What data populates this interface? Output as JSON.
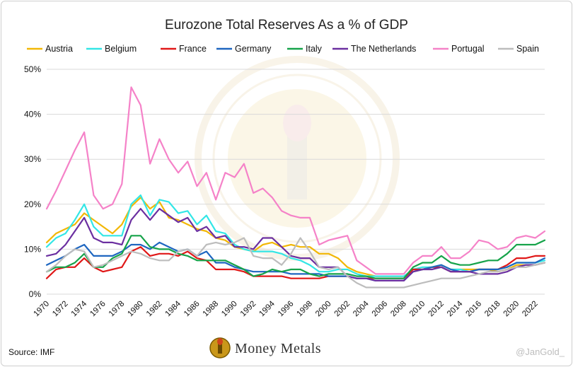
{
  "chart_data": {
    "type": "line",
    "title": "Eurozone Total Reserves As a % of GDP",
    "xlabel": "",
    "ylabel": "",
    "ylim": [
      0,
      50
    ],
    "yticks": [
      "0%",
      "10%",
      "20%",
      "30%",
      "40%",
      "50%"
    ],
    "xticks": [
      "1970",
      "1972",
      "1974",
      "1976",
      "1978",
      "1980",
      "1982",
      "1984",
      "1986",
      "1988",
      "1990",
      "1992",
      "1994",
      "1996",
      "1998",
      "2000",
      "2002",
      "2004",
      "2006",
      "2008",
      "2010",
      "2012",
      "2014",
      "2016",
      "2018",
      "2020",
      "2022"
    ],
    "x": [
      1970,
      1971,
      1972,
      1973,
      1974,
      1975,
      1976,
      1977,
      1978,
      1979,
      1980,
      1981,
      1982,
      1983,
      1984,
      1985,
      1986,
      1987,
      1988,
      1989,
      1990,
      1991,
      1992,
      1993,
      1994,
      1995,
      1996,
      1997,
      1998,
      1999,
      2000,
      2001,
      2002,
      2003,
      2004,
      2005,
      2006,
      2007,
      2008,
      2009,
      2010,
      2011,
      2012,
      2013,
      2014,
      2015,
      2016,
      2017,
      2018,
      2019,
      2020,
      2021,
      2022,
      2023
    ],
    "grid": true,
    "legend_position": "top",
    "series": [
      {
        "name": "Austria",
        "color": "#F2B705",
        "values": [
          11.5,
          13.5,
          14.5,
          15.5,
          18.0,
          16.5,
          15.0,
          13.5,
          15.5,
          19.5,
          21.5,
          19.0,
          20.5,
          17.0,
          16.5,
          15.5,
          14.5,
          14.0,
          12.5,
          12.0,
          10.5,
          10.0,
          9.5,
          11.0,
          11.5,
          10.5,
          11.0,
          10.5,
          10.5,
          9.0,
          9.0,
          8.0,
          6.0,
          5.0,
          4.5,
          4.0,
          4.0,
          4.0,
          4.0,
          5.0,
          5.5,
          6.0,
          6.5,
          5.5,
          5.5,
          5.5,
          5.5,
          5.5,
          5.0,
          5.5,
          6.5,
          6.5,
          6.5,
          7.0
        ]
      },
      {
        "name": "Belgium",
        "color": "#33E6E6",
        "values": [
          10.5,
          12.5,
          13.5,
          16.5,
          20.0,
          15.0,
          13.0,
          13.0,
          13.0,
          20.0,
          22.0,
          17.5,
          21.0,
          20.5,
          18.0,
          18.5,
          15.5,
          17.5,
          14.0,
          13.5,
          11.0,
          10.0,
          9.5,
          9.5,
          9.5,
          9.0,
          8.0,
          7.5,
          6.5,
          5.0,
          5.0,
          5.5,
          5.5,
          4.5,
          4.0,
          4.0,
          4.0,
          4.0,
          4.0,
          5.5,
          6.0,
          6.0,
          6.5,
          5.5,
          5.5,
          5.0,
          5.5,
          5.5,
          5.5,
          6.0,
          7.0,
          7.0,
          7.0,
          7.5
        ]
      },
      {
        "name": "France",
        "color": "#E01818",
        "values": [
          3.5,
          5.5,
          6.0,
          6.0,
          8.0,
          6.0,
          5.0,
          5.5,
          6.0,
          9.5,
          10.5,
          8.5,
          9.0,
          9.0,
          8.5,
          9.5,
          8.0,
          7.5,
          5.5,
          5.5,
          5.5,
          5.0,
          4.0,
          4.0,
          4.0,
          4.0,
          3.5,
          3.5,
          3.5,
          3.5,
          4.0,
          4.0,
          4.0,
          3.5,
          3.5,
          3.5,
          3.5,
          3.5,
          3.5,
          5.5,
          5.5,
          6.0,
          6.0,
          5.0,
          5.0,
          5.0,
          5.5,
          5.5,
          5.5,
          6.5,
          8.0,
          8.0,
          8.5,
          8.5
        ]
      },
      {
        "name": "Germany",
        "color": "#1E66C0",
        "values": [
          6.5,
          7.5,
          8.5,
          10.0,
          11.0,
          8.5,
          8.5,
          8.5,
          9.5,
          11.0,
          11.0,
          10.0,
          11.5,
          10.5,
          9.5,
          10.0,
          8.5,
          9.5,
          7.0,
          7.0,
          6.0,
          5.5,
          5.0,
          5.0,
          5.0,
          5.0,
          4.5,
          4.5,
          4.5,
          4.5,
          4.0,
          4.0,
          4.0,
          3.5,
          3.5,
          3.0,
          3.0,
          3.0,
          3.0,
          5.0,
          5.5,
          6.0,
          6.5,
          5.5,
          5.0,
          5.0,
          5.5,
          5.5,
          5.5,
          6.0,
          7.0,
          7.0,
          7.0,
          8.0
        ]
      },
      {
        "name": "Italy",
        "color": "#16A34A",
        "values": [
          5.0,
          6.0,
          6.0,
          7.0,
          9.0,
          6.0,
          6.0,
          8.0,
          9.0,
          13.0,
          13.0,
          10.5,
          10.0,
          10.0,
          9.0,
          8.5,
          7.5,
          7.5,
          7.5,
          7.5,
          6.5,
          5.5,
          4.0,
          4.5,
          5.5,
          5.0,
          5.5,
          5.5,
          4.5,
          4.0,
          4.5,
          4.5,
          4.5,
          4.0,
          4.0,
          3.5,
          3.5,
          3.5,
          3.5,
          6.0,
          7.0,
          7.0,
          8.5,
          7.0,
          6.5,
          6.5,
          7.0,
          7.5,
          7.5,
          9.0,
          11.0,
          11.0,
          11.0,
          12.0
        ]
      },
      {
        "name": "The Netherlands",
        "color": "#6B2FA0",
        "values": [
          8.5,
          9.0,
          11.0,
          14.0,
          17.0,
          12.5,
          11.5,
          11.5,
          11.0,
          16.5,
          19.0,
          16.5,
          19.0,
          17.5,
          16.0,
          17.0,
          14.0,
          15.0,
          12.5,
          13.0,
          10.5,
          10.5,
          10.0,
          12.5,
          12.5,
          10.5,
          8.5,
          8.0,
          8.0,
          6.0,
          6.0,
          6.0,
          4.0,
          3.5,
          3.5,
          3.0,
          3.0,
          3.0,
          3.0,
          5.0,
          5.5,
          5.5,
          6.0,
          5.0,
          5.0,
          5.0,
          4.5,
          4.5,
          4.5,
          5.0,
          6.0,
          6.5,
          6.5,
          7.0
        ]
      },
      {
        "name": "Portugal",
        "color": "#F582C8",
        "values": [
          19.0,
          23.0,
          27.5,
          32.0,
          36.0,
          22.0,
          19.0,
          20.0,
          24.5,
          46.0,
          42.0,
          29.0,
          34.5,
          30.0,
          27.0,
          29.5,
          24.0,
          27.0,
          21.0,
          27.0,
          26.0,
          29.0,
          22.5,
          23.5,
          21.5,
          18.5,
          17.5,
          17.0,
          17.0,
          11.0,
          12.0,
          12.5,
          13.0,
          7.5,
          6.0,
          4.5,
          4.5,
          4.5,
          4.5,
          7.0,
          8.5,
          8.5,
          10.5,
          8.0,
          8.0,
          9.5,
          12.0,
          11.5,
          10.0,
          10.5,
          12.5,
          13.0,
          12.5,
          14.0
        ]
      },
      {
        "name": "Spain",
        "color": "#BDBDBD",
        "values": [
          5.0,
          6.5,
          8.5,
          10.0,
          9.5,
          6.0,
          6.5,
          7.5,
          8.5,
          9.5,
          9.0,
          8.0,
          7.5,
          7.5,
          9.5,
          10.0,
          8.5,
          11.0,
          11.5,
          11.0,
          11.5,
          12.5,
          8.5,
          8.0,
          8.0,
          6.5,
          9.0,
          12.5,
          9.5,
          6.0,
          5.5,
          6.0,
          4.0,
          2.5,
          1.5,
          1.5,
          1.5,
          1.5,
          1.5,
          2.0,
          2.5,
          3.0,
          3.5,
          3.5,
          3.5,
          4.0,
          4.5,
          5.0,
          5.0,
          5.5,
          6.0,
          6.0,
          6.5,
          7.0
        ]
      }
    ]
  },
  "source": "Source: IMF",
  "brand": "Money Metals",
  "handle": "@JanGold_"
}
